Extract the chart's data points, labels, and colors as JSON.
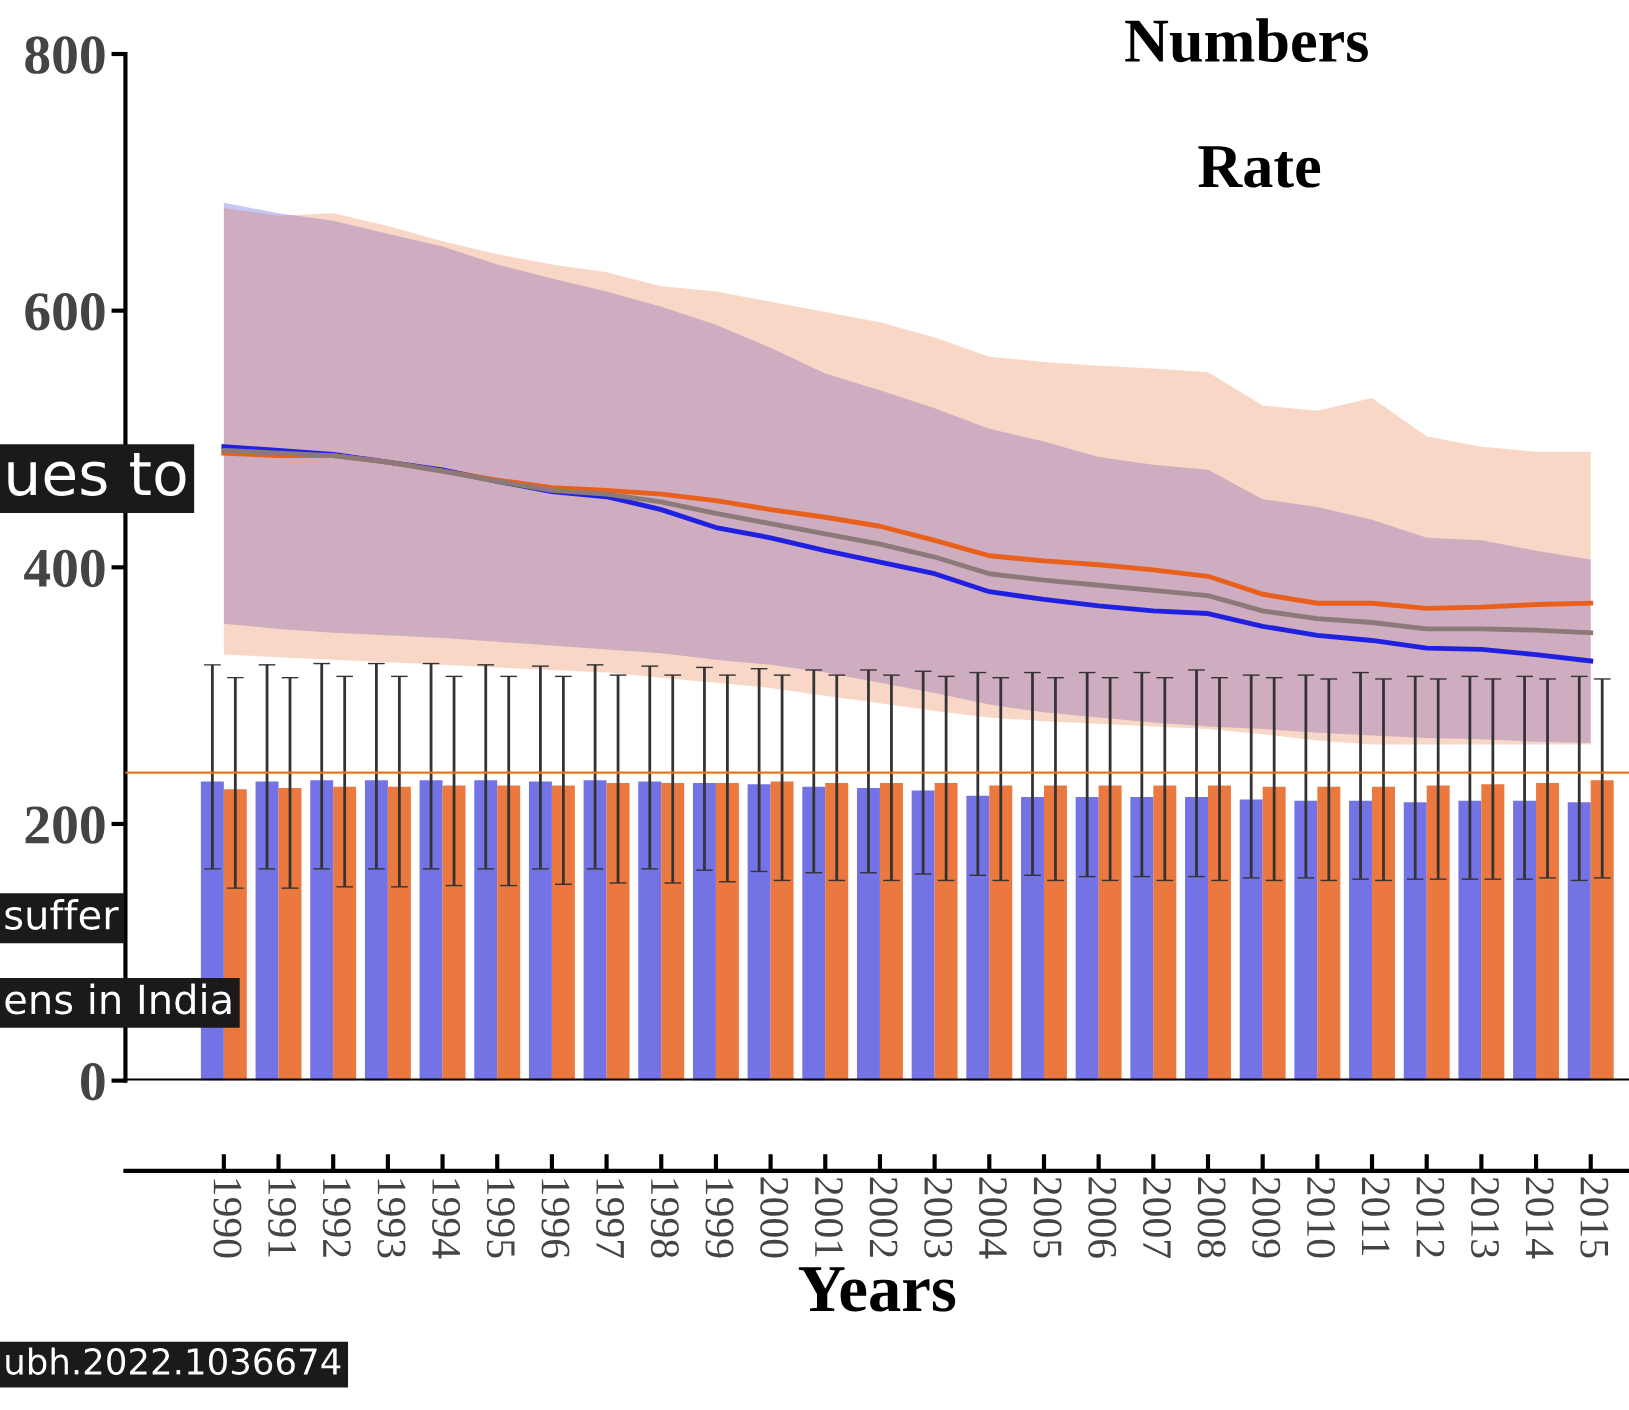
{
  "chart_data": {
    "type": "bar",
    "xlabel": "Years",
    "categories": [
      "1990",
      "1991",
      "1992",
      "1993",
      "1994",
      "1995",
      "1996",
      "1997",
      "1998",
      "1999",
      "2000",
      "2001",
      "2002",
      "2003",
      "2004",
      "2005",
      "2006",
      "2007",
      "2008",
      "2009",
      "2010",
      "2011",
      "2012",
      "2013",
      "2014",
      "2015"
    ],
    "series": [
      {
        "color": "#5a5ae0",
        "values": [
          233,
          233,
          234,
          234,
          234,
          234,
          233,
          234,
          233,
          232,
          231,
          229,
          228,
          226,
          222,
          221,
          221,
          221,
          221,
          219,
          218,
          218,
          217,
          218,
          218,
          217
        ],
        "errors": [
          [
            165,
            324
          ],
          [
            165,
            324
          ],
          [
            165,
            325
          ],
          [
            165,
            325
          ],
          [
            165,
            325
          ],
          [
            165,
            324
          ],
          [
            165,
            323
          ],
          [
            165,
            324
          ],
          [
            165,
            323
          ],
          [
            164,
            322
          ],
          [
            163,
            321
          ],
          [
            162,
            320
          ],
          [
            162,
            320
          ],
          [
            161,
            319
          ],
          [
            160,
            318
          ],
          [
            160,
            318
          ],
          [
            159,
            318
          ],
          [
            159,
            318
          ],
          [
            159,
            320
          ],
          [
            158,
            316
          ],
          [
            158,
            316
          ],
          [
            157,
            318
          ],
          [
            157,
            315
          ],
          [
            157,
            315
          ],
          [
            157,
            315
          ],
          [
            156,
            315
          ]
        ]
      },
      {
        "color": "#e8601c",
        "values": [
          227,
          228,
          229,
          229,
          230,
          230,
          230,
          232,
          232,
          232,
          233,
          232,
          232,
          232,
          230,
          230,
          230,
          230,
          230,
          229,
          229,
          229,
          230,
          231,
          232,
          234
        ],
        "errors": [
          [
            150,
            314
          ],
          [
            150,
            314
          ],
          [
            151,
            315
          ],
          [
            151,
            315
          ],
          [
            152,
            315
          ],
          [
            152,
            315
          ],
          [
            153,
            315
          ],
          [
            154,
            316
          ],
          [
            154,
            316
          ],
          [
            155,
            316
          ],
          [
            156,
            316
          ],
          [
            156,
            316
          ],
          [
            156,
            316
          ],
          [
            156,
            315
          ],
          [
            156,
            314
          ],
          [
            156,
            314
          ],
          [
            156,
            314
          ],
          [
            156,
            314
          ],
          [
            156,
            314
          ],
          [
            156,
            314
          ],
          [
            156,
            313
          ],
          [
            156,
            313
          ],
          [
            157,
            313
          ],
          [
            157,
            313
          ],
          [
            158,
            313
          ],
          [
            158,
            313
          ]
        ]
      },
      {
        "type": "line",
        "color": "#2020e0",
        "values": [
          494,
          491,
          488,
          482,
          476,
          467,
          459,
          455,
          445,
          431,
          423,
          413,
          404,
          395,
          381,
          375,
          370,
          366,
          364,
          354,
          347,
          343,
          337,
          336,
          332,
          327
        ],
        "upper": [
          684,
          676,
          670,
          660,
          650,
          636,
          625,
          615,
          603,
          589,
          571,
          551,
          538,
          524,
          508,
          498,
          486,
          480,
          476,
          453,
          447,
          437,
          423,
          421,
          413,
          406
        ],
        "lower": [
          356,
          352,
          349,
          347,
          345,
          342,
          339,
          336,
          333,
          328,
          324,
          318,
          310,
          302,
          293,
          287,
          283,
          279,
          276,
          274,
          271,
          269,
          267,
          266,
          264,
          263
        ]
      },
      {
        "type": "line",
        "color": "#e8601c",
        "values": [
          489,
          487,
          487,
          482,
          475,
          468,
          462,
          460,
          457,
          452,
          445,
          439,
          432,
          421,
          409,
          405,
          402,
          398,
          393,
          379,
          372,
          372,
          368,
          369,
          371,
          372
        ],
        "upper": [
          680,
          674,
          676,
          666,
          654,
          644,
          636,
          630,
          619,
          615,
          607,
          599,
          591,
          579,
          564,
          560,
          557,
          555,
          552,
          526,
          522,
          532,
          502,
          494,
          490,
          490
        ],
        "lower": [
          332,
          330,
          328,
          326,
          324,
          322,
          320,
          318,
          314,
          310,
          306,
          300,
          294,
          288,
          283,
          280,
          278,
          276,
          274,
          270,
          265,
          262,
          262,
          262,
          262,
          262
        ]
      },
      {
        "type": "line",
        "color": "#8c7a78",
        "values": [
          491,
          489,
          487,
          482,
          475,
          467,
          460,
          457,
          451,
          442,
          434,
          426,
          418,
          408,
          395,
          390,
          386,
          382,
          378,
          366,
          360,
          357,
          352,
          352,
          351,
          349
        ]
      }
    ],
    "ylim": [
      0,
      800
    ],
    "yticks": [
      0,
      200,
      400,
      600,
      800
    ],
    "ref_lines": [
      {
        "axis": "y",
        "value": 240,
        "color": "#e87722"
      }
    ],
    "annotations": [
      "Numbers",
      "Rate",
      "ues to",
      "suffer",
      "ens in India",
      "ubh.2022.1036674"
    ],
    "grid": false,
    "legend": false
  }
}
